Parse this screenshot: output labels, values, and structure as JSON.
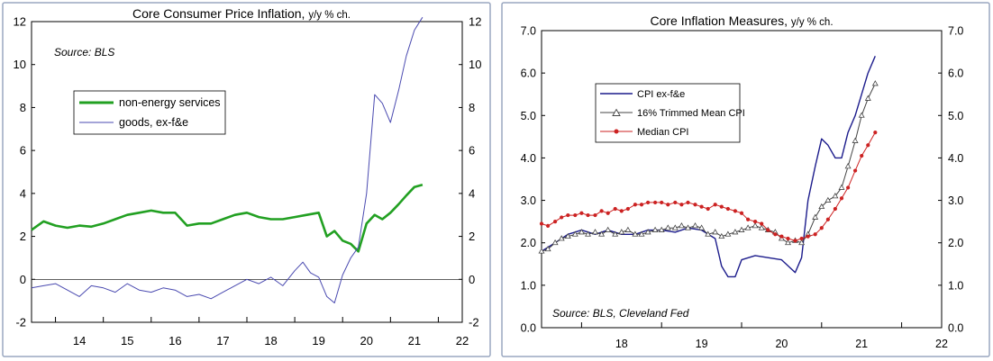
{
  "chart_data": [
    {
      "type": "line",
      "title": "Core Consumer Price Inflation,",
      "title_suffix": "y/y % ch.",
      "annotation": "Source: BLS",
      "x_ticks": [
        "14",
        "15",
        "16",
        "17",
        "18",
        "19",
        "20",
        "21",
        "22"
      ],
      "y_ticks": [
        "-2",
        "0",
        "2",
        "4",
        "6",
        "8",
        "10",
        "12"
      ],
      "ylim": [
        -2,
        12
      ],
      "xlim": [
        2013.5,
        2022.5
      ],
      "grid": false,
      "legend_position": "upper-left",
      "series": [
        {
          "name": "non-energy services",
          "color": "#22a022",
          "x": [
            2013.5,
            2013.75,
            2014.0,
            2014.25,
            2014.5,
            2014.75,
            2015.0,
            2015.25,
            2015.5,
            2015.75,
            2016.0,
            2016.25,
            2016.5,
            2016.75,
            2017.0,
            2017.25,
            2017.5,
            2017.75,
            2018.0,
            2018.25,
            2018.5,
            2018.75,
            2019.0,
            2019.25,
            2019.5,
            2019.67,
            2019.83,
            2020.0,
            2020.17,
            2020.33,
            2020.5,
            2020.67,
            2020.83,
            2021.0,
            2021.17,
            2021.33,
            2021.5,
            2021.67
          ],
          "values": [
            2.3,
            2.7,
            2.5,
            2.4,
            2.5,
            2.45,
            2.6,
            2.8,
            3.0,
            3.1,
            3.2,
            3.1,
            3.1,
            2.5,
            2.6,
            2.6,
            2.8,
            3.0,
            3.1,
            2.9,
            2.8,
            2.8,
            2.9,
            3.0,
            3.1,
            2.0,
            2.25,
            1.8,
            1.65,
            1.3,
            2.6,
            3.0,
            2.8,
            3.1,
            3.5,
            3.9,
            4.3,
            4.4
          ]
        },
        {
          "name": "goods, ex-f&e",
          "color": "#4a4ab0",
          "x": [
            2013.5,
            2013.75,
            2014.0,
            2014.25,
            2014.5,
            2014.75,
            2015.0,
            2015.25,
            2015.5,
            2015.75,
            2016.0,
            2016.25,
            2016.5,
            2016.75,
            2017.0,
            2017.25,
            2017.5,
            2017.75,
            2018.0,
            2018.25,
            2018.5,
            2018.75,
            2019.0,
            2019.17,
            2019.33,
            2019.5,
            2019.67,
            2019.83,
            2020.0,
            2020.17,
            2020.33,
            2020.5,
            2020.67,
            2020.83,
            2021.0,
            2021.17,
            2021.33,
            2021.5,
            2021.67
          ],
          "values": [
            -0.4,
            -0.3,
            -0.2,
            -0.5,
            -0.8,
            -0.3,
            -0.4,
            -0.6,
            -0.2,
            -0.5,
            -0.6,
            -0.4,
            -0.5,
            -0.8,
            -0.7,
            -0.9,
            -0.6,
            -0.3,
            0.0,
            -0.2,
            0.1,
            -0.3,
            0.4,
            0.8,
            0.3,
            0.1,
            -0.8,
            -1.1,
            0.2,
            1.0,
            1.5,
            4.0,
            8.6,
            8.2,
            7.3,
            8.8,
            10.4,
            11.6,
            12.2
          ]
        }
      ]
    },
    {
      "type": "line",
      "title": "Core Inflation Measures,",
      "title_suffix": "y/y % ch.",
      "annotation": "Source: BLS, Cleveland Fed",
      "x_ticks": [
        "18",
        "19",
        "20",
        "21",
        "22"
      ],
      "y_ticks": [
        "0.0",
        "1.0",
        "2.0",
        "3.0",
        "4.0",
        "5.0",
        "6.0",
        "7.0"
      ],
      "ylim": [
        0,
        7
      ],
      "xlim": [
        2017.5,
        2022.5
      ],
      "grid": false,
      "legend_position": "upper-left",
      "series": [
        {
          "name": "CPI ex-f&e",
          "color": "#1c1c8c",
          "marker": "none",
          "x": [
            2017.5,
            2017.67,
            2017.83,
            2018.0,
            2018.17,
            2018.33,
            2018.5,
            2018.67,
            2018.83,
            2019.0,
            2019.17,
            2019.33,
            2019.5,
            2019.67,
            2019.75,
            2019.83,
            2019.92,
            2020.0,
            2020.17,
            2020.33,
            2020.5,
            2020.67,
            2020.75,
            2020.83,
            2020.92,
            2021.0,
            2021.08,
            2021.17,
            2021.25,
            2021.33,
            2021.42,
            2021.5,
            2021.58,
            2021.67
          ],
          "values": [
            1.8,
            2.0,
            2.2,
            2.3,
            2.2,
            2.3,
            2.2,
            2.2,
            2.3,
            2.3,
            2.25,
            2.35,
            2.3,
            2.1,
            1.45,
            1.2,
            1.2,
            1.6,
            1.7,
            1.65,
            1.6,
            1.3,
            1.65,
            3.0,
            3.8,
            4.45,
            4.3,
            4.0,
            4.0,
            4.6,
            5.0,
            5.5,
            6.0,
            6.4
          ]
        },
        {
          "name": "16% Trimmed Mean CPI",
          "color": "#444444",
          "marker": "triangle",
          "x": [
            2017.5,
            2017.58,
            2017.67,
            2017.75,
            2017.83,
            2017.92,
            2018.0,
            2018.08,
            2018.17,
            2018.25,
            2018.33,
            2018.42,
            2018.5,
            2018.58,
            2018.67,
            2018.75,
            2018.83,
            2018.92,
            2019.0,
            2019.08,
            2019.17,
            2019.25,
            2019.33,
            2019.42,
            2019.5,
            2019.58,
            2019.67,
            2019.75,
            2019.83,
            2019.92,
            2020.0,
            2020.08,
            2020.17,
            2020.25,
            2020.33,
            2020.42,
            2020.5,
            2020.58,
            2020.67,
            2020.75,
            2020.83,
            2020.92,
            2021.0,
            2021.08,
            2021.17,
            2021.25,
            2021.33,
            2021.42,
            2021.5,
            2021.58,
            2021.67
          ],
          "values": [
            1.8,
            1.85,
            2.0,
            2.1,
            2.15,
            2.2,
            2.25,
            2.2,
            2.25,
            2.2,
            2.3,
            2.2,
            2.25,
            2.3,
            2.2,
            2.2,
            2.25,
            2.3,
            2.3,
            2.35,
            2.35,
            2.4,
            2.35,
            2.4,
            2.35,
            2.2,
            2.25,
            2.15,
            2.2,
            2.25,
            2.3,
            2.35,
            2.4,
            2.35,
            2.3,
            2.25,
            2.1,
            2.0,
            2.05,
            2.0,
            2.2,
            2.6,
            2.85,
            3.0,
            3.1,
            3.3,
            3.8,
            4.4,
            5.0,
            5.4,
            5.75
          ]
        },
        {
          "name": "Median CPI",
          "color": "#cc2222",
          "marker": "circle",
          "x": [
            2017.5,
            2017.58,
            2017.67,
            2017.75,
            2017.83,
            2017.92,
            2018.0,
            2018.08,
            2018.17,
            2018.25,
            2018.33,
            2018.42,
            2018.5,
            2018.58,
            2018.67,
            2018.75,
            2018.83,
            2018.92,
            2019.0,
            2019.08,
            2019.17,
            2019.25,
            2019.33,
            2019.42,
            2019.5,
            2019.58,
            2019.67,
            2019.75,
            2019.83,
            2019.92,
            2020.0,
            2020.08,
            2020.17,
            2020.25,
            2020.33,
            2020.42,
            2020.5,
            2020.58,
            2020.67,
            2020.75,
            2020.83,
            2020.92,
            2021.0,
            2021.08,
            2021.17,
            2021.25,
            2021.33,
            2021.42,
            2021.5,
            2021.58,
            2021.67
          ],
          "values": [
            2.45,
            2.4,
            2.5,
            2.6,
            2.65,
            2.65,
            2.7,
            2.65,
            2.65,
            2.75,
            2.7,
            2.8,
            2.75,
            2.8,
            2.9,
            2.9,
            2.95,
            2.95,
            2.95,
            2.9,
            2.95,
            2.9,
            2.95,
            2.9,
            2.85,
            2.8,
            2.9,
            2.85,
            2.8,
            2.75,
            2.7,
            2.55,
            2.5,
            2.45,
            2.3,
            2.2,
            2.15,
            2.1,
            2.05,
            2.1,
            2.15,
            2.2,
            2.35,
            2.55,
            2.8,
            3.05,
            3.3,
            3.7,
            4.05,
            4.3,
            4.6
          ]
        }
      ]
    }
  ]
}
